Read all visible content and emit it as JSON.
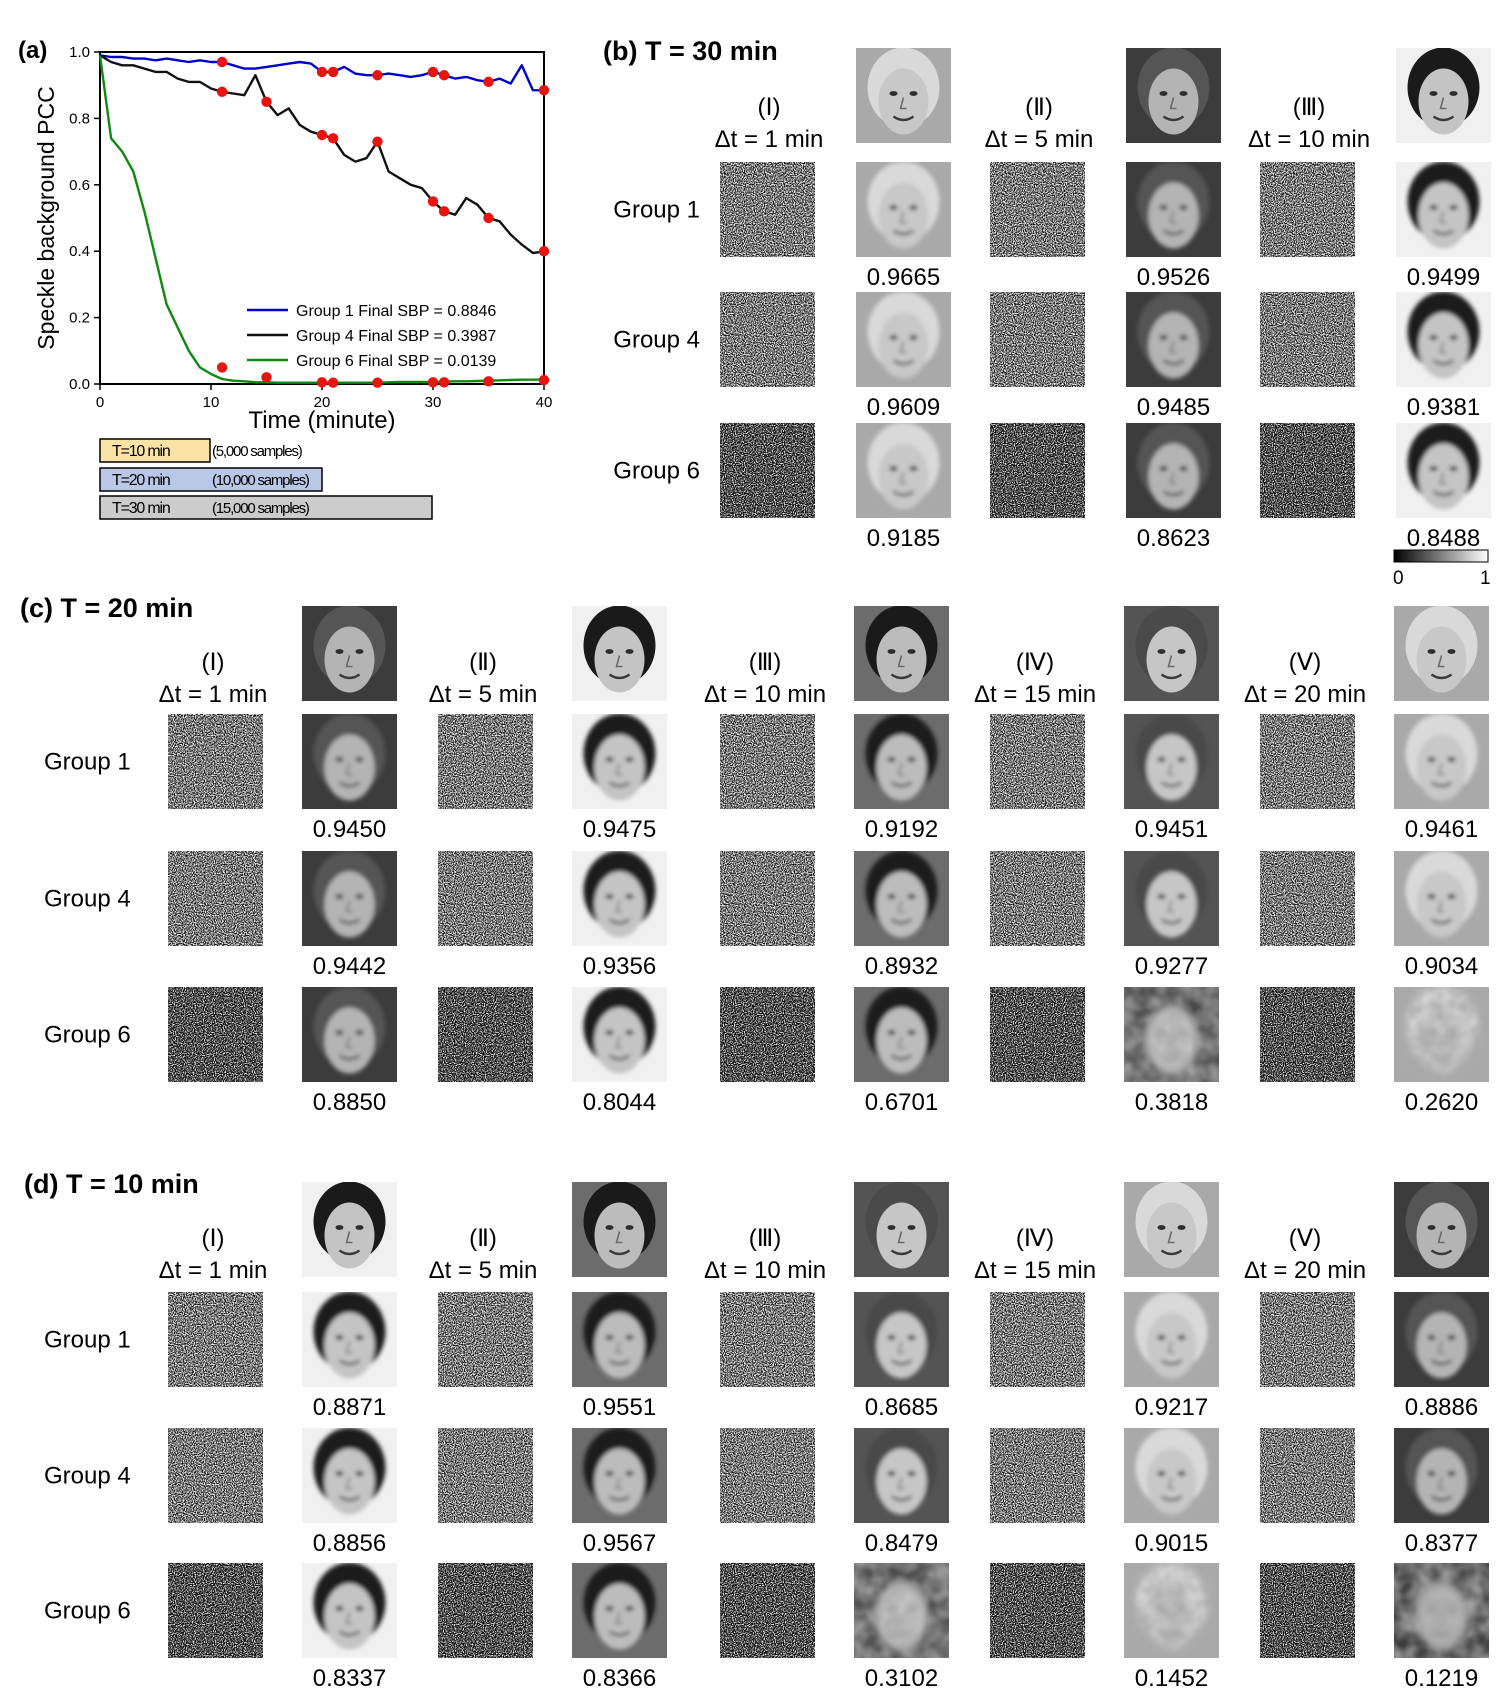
{
  "panel_a": {
    "label": "(a)",
    "legend": [
      {
        "text": "Group 1 Final SBP = 0.8846",
        "color": "#0000cc"
      },
      {
        "text": "Group 4 Final SBP = 0.3987",
        "color": "#111111"
      },
      {
        "text": "Group 6 Final SBP = 0.0139",
        "color": "#118811"
      }
    ],
    "bars": [
      {
        "label": "T=10 min",
        "samples": "(5,000 samples)",
        "color": "#fbe3a6"
      },
      {
        "label": "T=20 min",
        "samples": "(10,000 samples)",
        "color": "#b9c8e6"
      },
      {
        "label": "T=30 min",
        "samples": "(15,000 samples)",
        "color": "#cccccc"
      }
    ]
  },
  "chart_data": {
    "type": "line",
    "xlabel": "Time (minute)",
    "ylabel": "Speckle background PCC",
    "xlim": [
      0,
      40
    ],
    "ylim": [
      0,
      1.0
    ],
    "xticks": [
      0,
      10,
      20,
      30,
      40
    ],
    "yticks": [
      0.0,
      0.2,
      0.4,
      0.6,
      0.8,
      1.0
    ],
    "ytick_labels": [
      "0.0",
      "0.2",
      "0.4",
      "0.6",
      "0.8",
      "1.0"
    ],
    "legend_position": "bottom-right",
    "series": [
      {
        "name": "Group 1 Final SBP = 0.8846",
        "color": "#0000cc",
        "x": [
          0,
          1,
          2,
          3,
          4,
          5,
          6,
          7,
          8,
          9,
          10,
          11,
          12,
          13,
          14,
          15,
          16,
          17,
          18,
          19,
          20,
          21,
          22,
          23,
          24,
          25,
          26,
          27,
          28,
          29,
          30,
          31,
          32,
          33,
          34,
          35,
          36,
          37,
          38,
          39,
          40
        ],
        "y": [
          0.99,
          0.985,
          0.985,
          0.98,
          0.98,
          0.975,
          0.98,
          0.975,
          0.97,
          0.975,
          0.97,
          0.97,
          0.96,
          0.95,
          0.95,
          0.955,
          0.96,
          0.965,
          0.97,
          0.965,
          0.94,
          0.94,
          0.955,
          0.935,
          0.93,
          0.93,
          0.935,
          0.93,
          0.925,
          0.93,
          0.94,
          0.93,
          0.92,
          0.925,
          0.915,
          0.91,
          0.92,
          0.905,
          0.96,
          0.885,
          0.8846
        ]
      },
      {
        "name": "Group 4 Final SBP = 0.3987",
        "color": "#111111",
        "x": [
          0,
          1,
          2,
          3,
          4,
          5,
          6,
          7,
          8,
          9,
          10,
          11,
          12,
          13,
          14,
          15,
          16,
          17,
          18,
          19,
          20,
          21,
          22,
          23,
          24,
          25,
          26,
          27,
          28,
          29,
          30,
          31,
          32,
          33,
          34,
          35,
          36,
          37,
          38,
          39,
          40
        ],
        "y": [
          0.99,
          0.97,
          0.96,
          0.96,
          0.95,
          0.94,
          0.94,
          0.92,
          0.91,
          0.91,
          0.89,
          0.88,
          0.875,
          0.87,
          0.93,
          0.85,
          0.81,
          0.83,
          0.78,
          0.76,
          0.75,
          0.74,
          0.69,
          0.67,
          0.68,
          0.73,
          0.64,
          0.62,
          0.6,
          0.59,
          0.55,
          0.52,
          0.51,
          0.56,
          0.54,
          0.5,
          0.49,
          0.45,
          0.42,
          0.395,
          0.3987
        ]
      },
      {
        "name": "Group 6 Final SBP = 0.0139",
        "color": "#118811",
        "x": [
          0,
          1,
          2,
          3,
          4,
          5,
          6,
          7,
          8,
          9,
          10,
          11,
          12,
          13,
          14,
          15,
          16,
          17,
          18,
          19,
          20,
          21,
          22,
          23,
          24,
          25,
          26,
          27,
          28,
          29,
          30,
          31,
          32,
          33,
          34,
          35,
          36,
          37,
          38,
          39,
          40
        ],
        "y": [
          0.99,
          0.74,
          0.7,
          0.64,
          0.52,
          0.38,
          0.24,
          0.17,
          0.1,
          0.05,
          0.03,
          0.015,
          0.01,
          0.008,
          0.005,
          0.005,
          0.004,
          0.004,
          0.004,
          0.004,
          0.004,
          0.004,
          0.004,
          0.004,
          0.004,
          0.004,
          0.005,
          0.006,
          0.006,
          0.006,
          0.006,
          0.007,
          0.008,
          0.008,
          0.009,
          0.01,
          0.011,
          0.012,
          0.013,
          0.013,
          0.0139
        ]
      }
    ],
    "markers": [
      {
        "series": 0,
        "x": [
          11,
          20,
          21,
          25,
          30,
          31,
          35,
          40
        ],
        "y": [
          0.97,
          0.94,
          0.94,
          0.93,
          0.94,
          0.93,
          0.91,
          0.885
        ]
      },
      {
        "series": 1,
        "x": [
          11,
          15,
          20,
          21,
          25,
          30,
          31,
          35,
          40
        ],
        "y": [
          0.88,
          0.85,
          0.75,
          0.74,
          0.73,
          0.55,
          0.52,
          0.5,
          0.4
        ]
      },
      {
        "series": 2,
        "x": [
          11,
          15,
          20,
          21,
          25,
          30,
          31,
          35,
          40
        ],
        "y": [
          0.05,
          0.02,
          0.005,
          0.004,
          0.004,
          0.005,
          0.005,
          0.008,
          0.012
        ]
      }
    ]
  },
  "panel_b": {
    "title": "(b) T = 30 min",
    "columns": [
      {
        "roman": "(Ⅰ)",
        "dt": "Δt = 1 min"
      },
      {
        "roman": "(Ⅱ)",
        "dt": "Δt = 5 min"
      },
      {
        "roman": "(Ⅲ)",
        "dt": "Δt = 10 min"
      }
    ],
    "groups": [
      "Group 1",
      "Group 4",
      "Group 6"
    ],
    "values": [
      [
        "0.9665",
        "0.9526",
        "0.9499"
      ],
      [
        "0.9609",
        "0.9485",
        "0.9381"
      ],
      [
        "0.9185",
        "0.8623",
        "0.8488"
      ]
    ],
    "colorbar": {
      "min": "0",
      "max": "1"
    }
  },
  "panel_c": {
    "title": "(c) T = 20 min",
    "columns": [
      {
        "roman": "(Ⅰ)",
        "dt": "Δt = 1 min"
      },
      {
        "roman": "(Ⅱ)",
        "dt": "Δt = 5 min"
      },
      {
        "roman": "(Ⅲ)",
        "dt": "Δt = 10 min"
      },
      {
        "roman": "(Ⅳ)",
        "dt": "Δt = 15 min"
      },
      {
        "roman": "(Ⅴ)",
        "dt": "Δt = 20 min"
      }
    ],
    "groups": [
      "Group 1",
      "Group 4",
      "Group 6"
    ],
    "values": [
      [
        "0.9450",
        "0.9475",
        "0.9192",
        "0.9451",
        "0.9461"
      ],
      [
        "0.9442",
        "0.9356",
        "0.8932",
        "0.9277",
        "0.9034"
      ],
      [
        "0.8850",
        "0.8044",
        "0.6701",
        "0.3818",
        "0.2620"
      ]
    ]
  },
  "panel_d": {
    "title": "(d) T = 10 min",
    "columns": [
      {
        "roman": "(Ⅰ)",
        "dt": "Δt = 1 min"
      },
      {
        "roman": "(Ⅱ)",
        "dt": "Δt = 5 min"
      },
      {
        "roman": "(Ⅲ)",
        "dt": "Δt = 10 min"
      },
      {
        "roman": "(Ⅳ)",
        "dt": "Δt = 15 min"
      },
      {
        "roman": "(Ⅴ)",
        "dt": "Δt = 20 min"
      }
    ],
    "groups": [
      "Group 1",
      "Group 4",
      "Group 6"
    ],
    "values": [
      [
        "0.8871",
        "0.9551",
        "0.8685",
        "0.9217",
        "0.8886"
      ],
      [
        "0.8856",
        "0.9567",
        "0.8479",
        "0.9015",
        "0.8377"
      ],
      [
        "0.8337",
        "0.8366",
        "0.3102",
        "0.1452",
        "0.1219"
      ]
    ]
  }
}
